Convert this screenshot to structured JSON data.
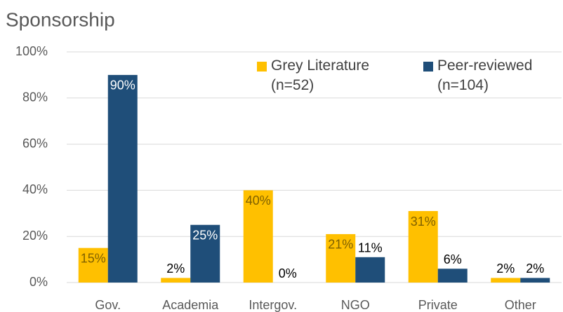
{
  "chart_data": {
    "type": "bar",
    "title": "Sponsorship",
    "categories": [
      "Gov.",
      "Academia",
      "Intergov.",
      "NGO",
      "Private",
      "Other"
    ],
    "series": [
      {
        "name": "Grey Literature (n=52)",
        "color": "#FFC000",
        "values": [
          15,
          2,
          40,
          21,
          31,
          2
        ],
        "value_labels": [
          "15%",
          "2%",
          "40%",
          "21%",
          "31%",
          "2%"
        ]
      },
      {
        "name": "Peer-reviewed (n=104)",
        "color": "#1F4E79",
        "values": [
          90,
          25,
          0,
          11,
          6,
          2
        ],
        "value_labels": [
          "90%",
          "25%",
          "0%",
          "11%",
          "6%",
          "2%"
        ]
      }
    ],
    "ylim": [
      0,
      100
    ],
    "yticks": [
      {
        "value": 0,
        "label": "0%"
      },
      {
        "value": 20,
        "label": "20%"
      },
      {
        "value": 40,
        "label": "40%"
      },
      {
        "value": 60,
        "label": "60%"
      },
      {
        "value": 80,
        "label": "80%"
      },
      {
        "value": 100,
        "label": "100%"
      }
    ],
    "grid": true
  }
}
